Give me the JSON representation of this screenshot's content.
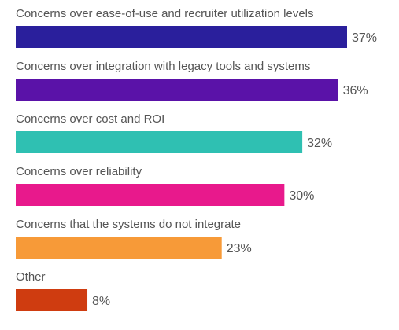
{
  "chart_data": {
    "type": "bar",
    "orientation": "horizontal",
    "categories": [
      "Concerns over ease-of-use and recruiter utilization levels",
      "Concerns over integration with legacy tools and systems",
      "Concerns over cost and ROI",
      "Concerns over reliability",
      "Concerns that the systems do not integrate",
      "Other"
    ],
    "values": [
      37,
      36,
      32,
      30,
      23,
      8
    ],
    "value_labels": [
      "37%",
      "36%",
      "32%",
      "30%",
      "23%",
      "8%"
    ],
    "colors": [
      "#2a1f9c",
      "#5a12a8",
      "#2fc0b2",
      "#e8198c",
      "#f79a38",
      "#cf3c10"
    ],
    "unit": "%",
    "xlim": [
      0,
      37
    ],
    "grid": false,
    "legend": "none"
  }
}
